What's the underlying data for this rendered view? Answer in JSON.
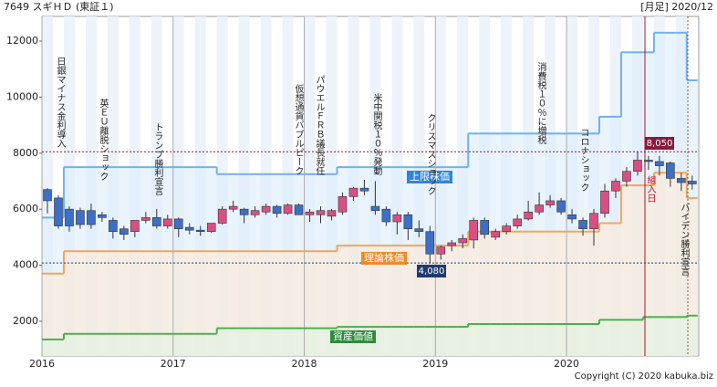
{
  "chart_data": {
    "type": "candlestick",
    "title": "7649 スギＨＤ (東証１)",
    "subtitle": "[月足] 2020/12",
    "copyright": "Copyright (C) 2020 kabuka.biz",
    "categories": [
      "2016",
      null,
      null,
      null,
      null,
      null,
      null,
      null,
      null,
      null,
      null,
      null,
      "2017",
      null,
      null,
      null,
      null,
      null,
      null,
      null,
      null,
      null,
      null,
      null,
      "2018",
      null,
      null,
      null,
      null,
      null,
      null,
      null,
      null,
      null,
      null,
      null,
      "2019",
      null,
      null,
      null,
      null,
      null,
      null,
      null,
      null,
      null,
      null,
      null,
      "2020",
      null,
      null,
      null,
      null,
      null,
      null,
      null,
      null,
      null,
      null,
      null
    ],
    "open": [
      6700,
      6400,
      6000,
      5950,
      5950,
      5800,
      5600,
      5300,
      5200,
      5600,
      5700,
      5400,
      5650,
      5350,
      5250,
      5200,
      5500,
      6000,
      6000,
      5800,
      5900,
      6100,
      5850,
      6150,
      5800,
      5800,
      5750,
      5900,
      6450,
      6750,
      6100,
      6000,
      5550,
      5800,
      5300,
      5200,
      4400,
      4700,
      4800,
      4900,
      5600,
      5000,
      5200,
      5400,
      5650,
      5900,
      6150,
      6300,
      5800,
      5600,
      5300,
      5850,
      6650,
      7000,
      7350,
      7750,
      7700,
      7650,
      7100,
      7000
    ],
    "high": [
      6750,
      6500,
      6100,
      6050,
      6200,
      5900,
      5700,
      5400,
      5600,
      5900,
      6000,
      5800,
      5700,
      5500,
      5400,
      5500,
      6100,
      6300,
      6050,
      6100,
      6200,
      6150,
      6200,
      6200,
      6000,
      6100,
      6000,
      6600,
      6800,
      7050,
      7000,
      6100,
      5900,
      5900,
      5600,
      5400,
      4700,
      4900,
      5100,
      5700,
      5700,
      5300,
      5500,
      5800,
      6300,
      6600,
      6500,
      6400,
      6000,
      5700,
      6000,
      6900,
      7100,
      7500,
      8050,
      7900,
      7900,
      7700,
      7300,
      7200
    ],
    "low": [
      5850,
      5300,
      5200,
      5300,
      5300,
      5550,
      4950,
      4900,
      5000,
      5500,
      5300,
      5300,
      5000,
      5100,
      5050,
      5150,
      5450,
      5900,
      5500,
      5700,
      5800,
      5700,
      5800,
      5800,
      5550,
      5500,
      5600,
      5800,
      6300,
      6500,
      5800,
      5400,
      5100,
      4900,
      5000,
      4080,
      4200,
      4500,
      4600,
      4600,
      4950,
      4900,
      5100,
      5300,
      5600,
      5800,
      6050,
      5800,
      5500,
      5050,
      4700,
      5700,
      6400,
      6800,
      7200,
      7400,
      7200,
      6800,
      6650,
      6700
    ],
    "close": [
      6300,
      5400,
      5400,
      5450,
      5450,
      5700,
      5200,
      5100,
      5600,
      5700,
      5400,
      5650,
      5300,
      5250,
      5200,
      5500,
      6000,
      6100,
      5800,
      5950,
      6100,
      5850,
      6150,
      5800,
      5900,
      5950,
      5950,
      6450,
      6750,
      6650,
      5950,
      5550,
      5800,
      5300,
      5200,
      4400,
      4650,
      4800,
      4950,
      5600,
      5100,
      5200,
      5400,
      5650,
      5900,
      6150,
      6300,
      5900,
      5650,
      5300,
      5850,
      6650,
      7000,
      7350,
      7750,
      7700,
      7550,
      7100,
      6950,
      6900
    ],
    "up_color": "#d94f84",
    "down_color": "#3d6fc4",
    "series": [
      {
        "name": "上限株価",
        "color": "#6fb1ef",
        "values": [
          5700,
          5700,
          7500,
          7500,
          7500,
          7500,
          7500,
          7500,
          7500,
          7500,
          7500,
          7500,
          7500,
          7500,
          7500,
          7500,
          7250,
          7250,
          7250,
          7250,
          7250,
          7250,
          7250,
          7250,
          7250,
          7250,
          7250,
          7500,
          7500,
          7500,
          7500,
          7500,
          7500,
          7500,
          7500,
          7500,
          7500,
          7500,
          7500,
          8700,
          8700,
          8700,
          8700,
          8700,
          8700,
          8700,
          8700,
          8700,
          8700,
          8700,
          8700,
          9300,
          9300,
          11600,
          11600,
          11600,
          12300,
          12300,
          12300,
          10600
        ]
      },
      {
        "name": "理論株価",
        "color": "#f4a55a",
        "values": [
          3700,
          3700,
          4500,
          4500,
          4500,
          4500,
          4500,
          4500,
          4500,
          4500,
          4500,
          4500,
          4500,
          4500,
          4500,
          4500,
          4500,
          4500,
          4500,
          4500,
          4500,
          4500,
          4500,
          4500,
          4500,
          4500,
          4500,
          4700,
          4700,
          4700,
          4700,
          4700,
          4700,
          4700,
          4700,
          4700,
          4700,
          4700,
          4700,
          5200,
          5200,
          5200,
          5200,
          5200,
          5200,
          5200,
          5200,
          5200,
          5200,
          5200,
          5200,
          5500,
          5500,
          6850,
          6850,
          6850,
          7300,
          7300,
          7300,
          6400
        ]
      },
      {
        "name": "資産価値",
        "color": "#4caf50",
        "values": [
          1350,
          1350,
          1550,
          1550,
          1550,
          1550,
          1550,
          1550,
          1550,
          1550,
          1550,
          1550,
          1550,
          1550,
          1550,
          1550,
          1750,
          1750,
          1750,
          1750,
          1750,
          1750,
          1750,
          1750,
          1750,
          1750,
          1750,
          1800,
          1800,
          1800,
          1800,
          1800,
          1800,
          1800,
          1800,
          1800,
          1800,
          1800,
          1800,
          1900,
          1900,
          1900,
          1900,
          1900,
          1900,
          1900,
          1900,
          1900,
          1900,
          1900,
          1900,
          2050,
          2050,
          2050,
          2050,
          2150,
          2150,
          2150,
          2150,
          2200
        ]
      }
    ],
    "levels": [
      {
        "value": 8050,
        "label": "8,050",
        "color": "#8b1a3a"
      },
      {
        "value": 4080,
        "label": "4,080",
        "color": "#1f3a6e"
      }
    ],
    "annotations": [
      "日銀マイナス金利導入",
      "英ＥＵ離脱ショック",
      "トランプ勝利宣言",
      "仮想通貨バブルピーク",
      "パウエルＦＲＢ議長就任",
      "米中関税１０％発動",
      "クリスマスショック",
      "消費税１０％に増税",
      "コロナショック",
      "バイデン勝利宣言",
      "組入日"
    ],
    "ylim": [
      760,
      12880
    ],
    "yticks": [
      2000,
      4000,
      6000,
      8000,
      10000,
      12000
    ]
  }
}
